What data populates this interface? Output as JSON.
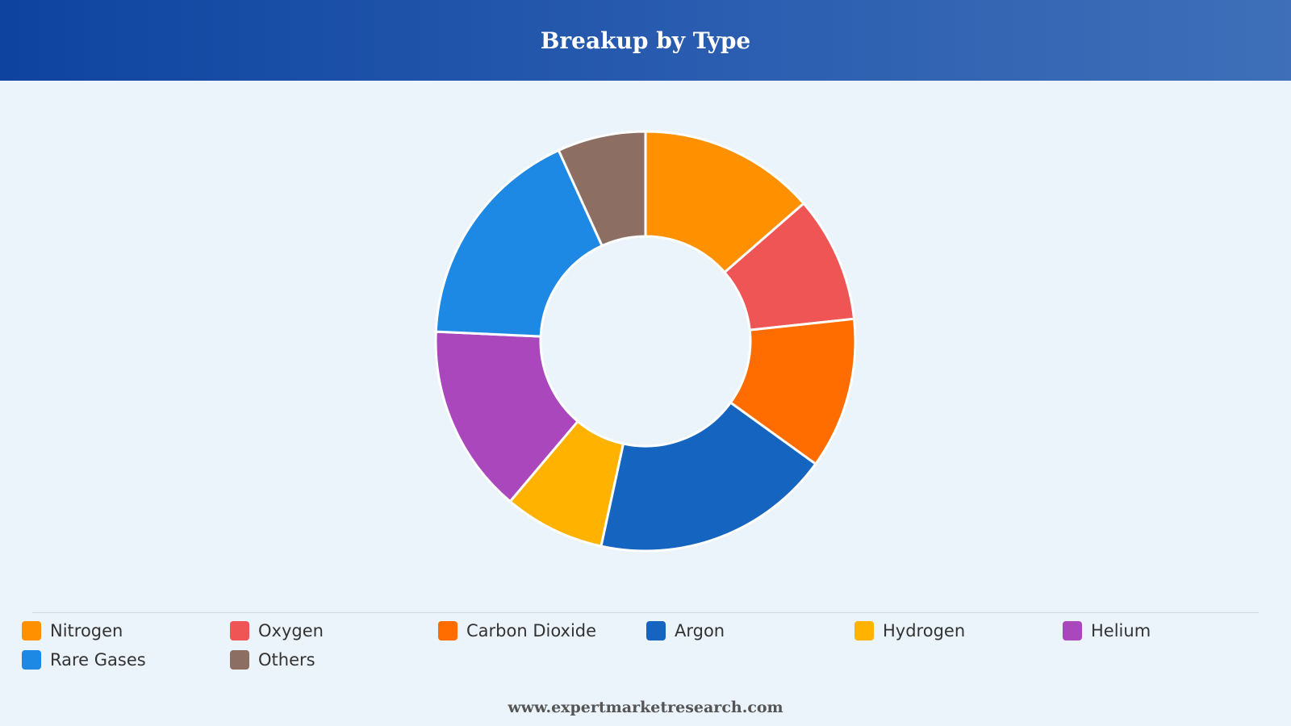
{
  "header": {
    "title": "Breakup by Type"
  },
  "footer": {
    "text": "www.expertmarketresearch.com"
  },
  "chart_data": {
    "type": "pie",
    "donut": true,
    "title": "Breakup by Type",
    "legend_position": "bottom",
    "categories": [
      "Nitrogen",
      "Oxygen",
      "Carbon Dioxide",
      "Argon",
      "Hydrogen",
      "Helium",
      "Rare Gases",
      "Others"
    ],
    "values": [
      14,
      10,
      12,
      19,
      8,
      15,
      18,
      7
    ],
    "colors": [
      "#ff9100",
      "#ef5555",
      "#ff6d00",
      "#1565c0",
      "#ffb300",
      "#ab47bc",
      "#1e88e5",
      "#8d6e63"
    ]
  }
}
